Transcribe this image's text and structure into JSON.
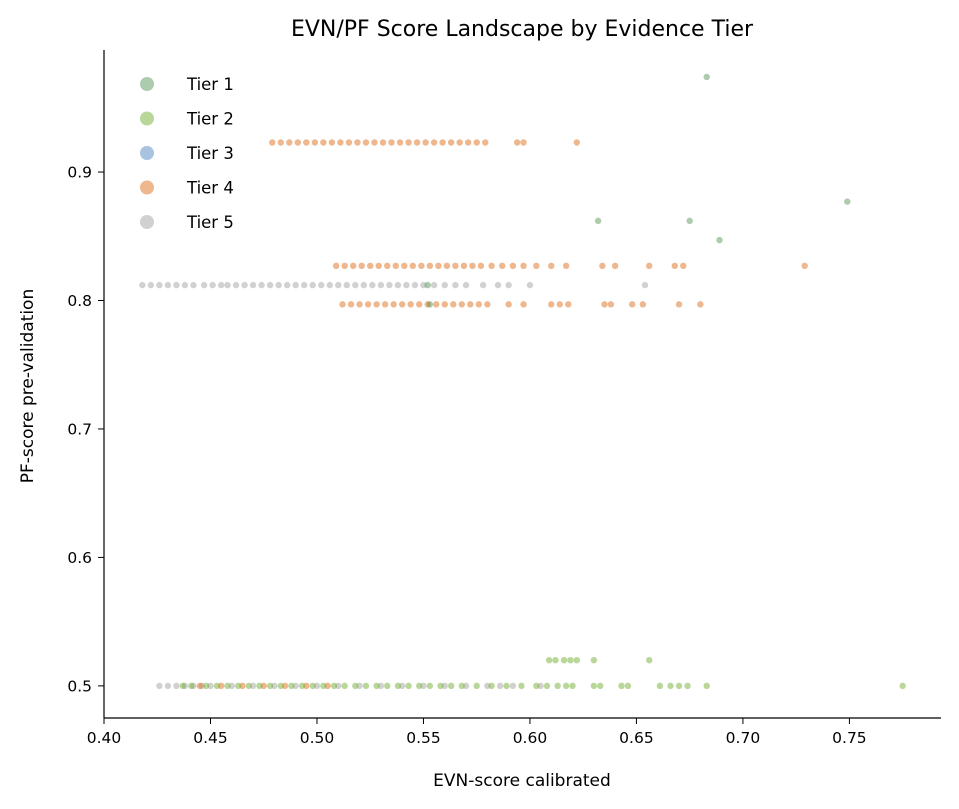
{
  "chart_data": {
    "type": "scatter",
    "title": "EVN/PF Score Landscape by Evidence Tier",
    "xlabel": "EVN-score calibrated",
    "ylabel": "PF-score pre-validation",
    "xlim": [
      0.4,
      0.793
    ],
    "ylim": [
      0.475,
      0.995
    ],
    "xticks": [
      0.4,
      0.45,
      0.5,
      0.55,
      0.6,
      0.65,
      0.7,
      0.75
    ],
    "xtick_labels": [
      "0.40",
      "0.45",
      "0.50",
      "0.55",
      "0.60",
      "0.65",
      "0.70",
      "0.75"
    ],
    "yticks": [
      0.5,
      0.6,
      0.7,
      0.8,
      0.9
    ],
    "ytick_labels": [
      "0.5",
      "0.6",
      "0.7",
      "0.8",
      "0.9"
    ],
    "grid": false,
    "legend_position": "top-left",
    "series": [
      {
        "name": "Tier 5",
        "color": "#999999",
        "points": [
          [
            0.418,
            0.812
          ],
          [
            0.422,
            0.812
          ],
          [
            0.426,
            0.812
          ],
          [
            0.43,
            0.812
          ],
          [
            0.434,
            0.812
          ],
          [
            0.438,
            0.812
          ],
          [
            0.442,
            0.812
          ],
          [
            0.447,
            0.812
          ],
          [
            0.451,
            0.812
          ],
          [
            0.455,
            0.812
          ],
          [
            0.458,
            0.812
          ],
          [
            0.462,
            0.812
          ],
          [
            0.466,
            0.812
          ],
          [
            0.47,
            0.812
          ],
          [
            0.474,
            0.812
          ],
          [
            0.478,
            0.812
          ],
          [
            0.482,
            0.812
          ],
          [
            0.486,
            0.812
          ],
          [
            0.49,
            0.812
          ],
          [
            0.494,
            0.812
          ],
          [
            0.498,
            0.812
          ],
          [
            0.502,
            0.812
          ],
          [
            0.506,
            0.812
          ],
          [
            0.51,
            0.812
          ],
          [
            0.514,
            0.812
          ],
          [
            0.518,
            0.812
          ],
          [
            0.522,
            0.812
          ],
          [
            0.526,
            0.812
          ],
          [
            0.53,
            0.812
          ],
          [
            0.534,
            0.812
          ],
          [
            0.538,
            0.812
          ],
          [
            0.542,
            0.812
          ],
          [
            0.546,
            0.812
          ],
          [
            0.55,
            0.812
          ],
          [
            0.555,
            0.812
          ],
          [
            0.56,
            0.812
          ],
          [
            0.565,
            0.812
          ],
          [
            0.57,
            0.812
          ],
          [
            0.578,
            0.812
          ],
          [
            0.585,
            0.812
          ],
          [
            0.59,
            0.812
          ],
          [
            0.6,
            0.812
          ],
          [
            0.654,
            0.812
          ],
          [
            0.426,
            0.5
          ],
          [
            0.43,
            0.5
          ],
          [
            0.434,
            0.5
          ],
          [
            0.438,
            0.5
          ],
          [
            0.442,
            0.5
          ],
          [
            0.446,
            0.5
          ],
          [
            0.45,
            0.5
          ],
          [
            0.46,
            0.5
          ],
          [
            0.47,
            0.5
          ],
          [
            0.48,
            0.5
          ],
          [
            0.49,
            0.5
          ],
          [
            0.5,
            0.5
          ],
          [
            0.51,
            0.5
          ],
          [
            0.52,
            0.5
          ],
          [
            0.53,
            0.5
          ],
          [
            0.54,
            0.5
          ],
          [
            0.55,
            0.5
          ],
          [
            0.56,
            0.5
          ],
          [
            0.57,
            0.5
          ],
          [
            0.58,
            0.5
          ],
          [
            0.586,
            0.5
          ],
          [
            0.592,
            0.5
          ],
          [
            0.605,
            0.5
          ]
        ]
      },
      {
        "name": "Tier 4",
        "color": "#d95f02",
        "points": [
          [
            0.479,
            0.923
          ],
          [
            0.483,
            0.923
          ],
          [
            0.487,
            0.923
          ],
          [
            0.491,
            0.923
          ],
          [
            0.495,
            0.923
          ],
          [
            0.499,
            0.923
          ],
          [
            0.503,
            0.923
          ],
          [
            0.507,
            0.923
          ],
          [
            0.511,
            0.923
          ],
          [
            0.515,
            0.923
          ],
          [
            0.519,
            0.923
          ],
          [
            0.523,
            0.923
          ],
          [
            0.527,
            0.923
          ],
          [
            0.531,
            0.923
          ],
          [
            0.535,
            0.923
          ],
          [
            0.539,
            0.923
          ],
          [
            0.543,
            0.923
          ],
          [
            0.547,
            0.923
          ],
          [
            0.551,
            0.923
          ],
          [
            0.555,
            0.923
          ],
          [
            0.559,
            0.923
          ],
          [
            0.563,
            0.923
          ],
          [
            0.567,
            0.923
          ],
          [
            0.571,
            0.923
          ],
          [
            0.575,
            0.923
          ],
          [
            0.579,
            0.923
          ],
          [
            0.594,
            0.923
          ],
          [
            0.597,
            0.923
          ],
          [
            0.622,
            0.923
          ],
          [
            0.509,
            0.827
          ],
          [
            0.513,
            0.827
          ],
          [
            0.517,
            0.827
          ],
          [
            0.521,
            0.827
          ],
          [
            0.525,
            0.827
          ],
          [
            0.529,
            0.827
          ],
          [
            0.533,
            0.827
          ],
          [
            0.537,
            0.827
          ],
          [
            0.541,
            0.827
          ],
          [
            0.545,
            0.827
          ],
          [
            0.549,
            0.827
          ],
          [
            0.553,
            0.827
          ],
          [
            0.557,
            0.827
          ],
          [
            0.561,
            0.827
          ],
          [
            0.565,
            0.827
          ],
          [
            0.569,
            0.827
          ],
          [
            0.573,
            0.827
          ],
          [
            0.577,
            0.827
          ],
          [
            0.582,
            0.827
          ],
          [
            0.587,
            0.827
          ],
          [
            0.592,
            0.827
          ],
          [
            0.597,
            0.827
          ],
          [
            0.603,
            0.827
          ],
          [
            0.61,
            0.827
          ],
          [
            0.617,
            0.827
          ],
          [
            0.634,
            0.827
          ],
          [
            0.64,
            0.827
          ],
          [
            0.656,
            0.827
          ],
          [
            0.668,
            0.827
          ],
          [
            0.672,
            0.827
          ],
          [
            0.729,
            0.827
          ],
          [
            0.512,
            0.797
          ],
          [
            0.516,
            0.797
          ],
          [
            0.52,
            0.797
          ],
          [
            0.524,
            0.797
          ],
          [
            0.528,
            0.797
          ],
          [
            0.532,
            0.797
          ],
          [
            0.536,
            0.797
          ],
          [
            0.54,
            0.797
          ],
          [
            0.544,
            0.797
          ],
          [
            0.548,
            0.797
          ],
          [
            0.552,
            0.797
          ],
          [
            0.556,
            0.797
          ],
          [
            0.56,
            0.797
          ],
          [
            0.564,
            0.797
          ],
          [
            0.568,
            0.797
          ],
          [
            0.572,
            0.797
          ],
          [
            0.576,
            0.797
          ],
          [
            0.58,
            0.797
          ],
          [
            0.59,
            0.797
          ],
          [
            0.597,
            0.797
          ],
          [
            0.61,
            0.797
          ],
          [
            0.614,
            0.797
          ],
          [
            0.618,
            0.797
          ],
          [
            0.635,
            0.797
          ],
          [
            0.638,
            0.797
          ],
          [
            0.648,
            0.797
          ],
          [
            0.653,
            0.797
          ],
          [
            0.67,
            0.797
          ],
          [
            0.68,
            0.797
          ],
          [
            0.445,
            0.5
          ],
          [
            0.455,
            0.5
          ],
          [
            0.465,
            0.5
          ],
          [
            0.475,
            0.5
          ],
          [
            0.485,
            0.5
          ],
          [
            0.495,
            0.5
          ],
          [
            0.505,
            0.5
          ]
        ]
      },
      {
        "name": "Tier 3",
        "color": "#3b7bb8",
        "points": []
      },
      {
        "name": "Tier 2",
        "color": "#66a61e",
        "points": [
          [
            0.437,
            0.5
          ],
          [
            0.441,
            0.5
          ],
          [
            0.448,
            0.5
          ],
          [
            0.453,
            0.5
          ],
          [
            0.458,
            0.5
          ],
          [
            0.463,
            0.5
          ],
          [
            0.468,
            0.5
          ],
          [
            0.473,
            0.5
          ],
          [
            0.478,
            0.5
          ],
          [
            0.483,
            0.5
          ],
          [
            0.488,
            0.5
          ],
          [
            0.493,
            0.5
          ],
          [
            0.498,
            0.5
          ],
          [
            0.503,
            0.5
          ],
          [
            0.508,
            0.5
          ],
          [
            0.513,
            0.5
          ],
          [
            0.518,
            0.5
          ],
          [
            0.523,
            0.5
          ],
          [
            0.528,
            0.5
          ],
          [
            0.533,
            0.5
          ],
          [
            0.538,
            0.5
          ],
          [
            0.543,
            0.5
          ],
          [
            0.548,
            0.5
          ],
          [
            0.553,
            0.5
          ],
          [
            0.558,
            0.5
          ],
          [
            0.563,
            0.5
          ],
          [
            0.568,
            0.5
          ],
          [
            0.575,
            0.5
          ],
          [
            0.582,
            0.5
          ],
          [
            0.589,
            0.5
          ],
          [
            0.596,
            0.5
          ],
          [
            0.603,
            0.5
          ],
          [
            0.608,
            0.5
          ],
          [
            0.613,
            0.5
          ],
          [
            0.617,
            0.5
          ],
          [
            0.62,
            0.5
          ],
          [
            0.63,
            0.5
          ],
          [
            0.633,
            0.5
          ],
          [
            0.643,
            0.5
          ],
          [
            0.646,
            0.5
          ],
          [
            0.661,
            0.5
          ],
          [
            0.666,
            0.5
          ],
          [
            0.67,
            0.5
          ],
          [
            0.674,
            0.5
          ],
          [
            0.683,
            0.5
          ],
          [
            0.775,
            0.5
          ],
          [
            0.609,
            0.52
          ],
          [
            0.612,
            0.52
          ],
          [
            0.616,
            0.52
          ],
          [
            0.619,
            0.52
          ],
          [
            0.622,
            0.52
          ],
          [
            0.63,
            0.52
          ],
          [
            0.656,
            0.52
          ]
        ]
      },
      {
        "name": "Tier 1",
        "color": "#4a8c4a",
        "points": [
          [
            0.683,
            0.974
          ],
          [
            0.632,
            0.862
          ],
          [
            0.675,
            0.862
          ],
          [
            0.749,
            0.877
          ],
          [
            0.689,
            0.847
          ],
          [
            0.553,
            0.797
          ],
          [
            0.552,
            0.812
          ]
        ]
      }
    ]
  }
}
